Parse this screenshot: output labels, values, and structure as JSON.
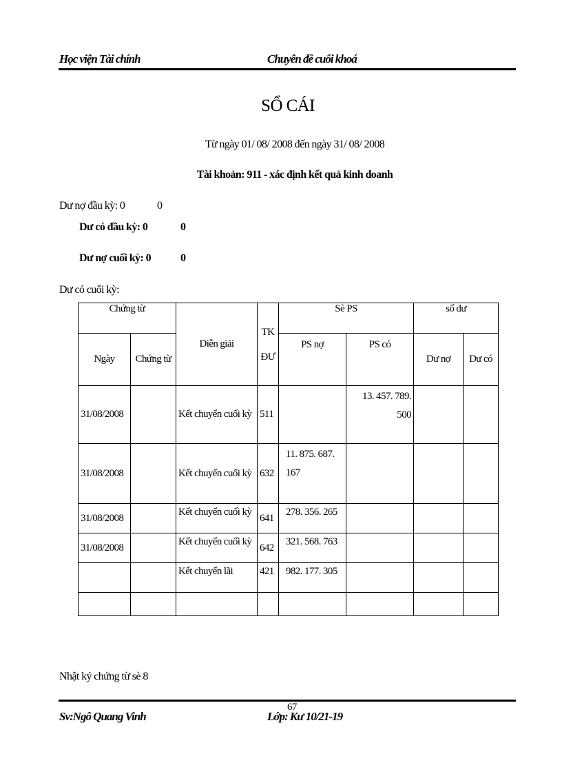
{
  "header": {
    "left": "Học viện Tài chính",
    "center": "Chuyên đề cuối khoá"
  },
  "title": "SỔ CÁI",
  "date_range": "Từ ngày 01/ 08/ 2008 đến ngày 31/ 08/ 2008",
  "account": "Tài khoản: 911 - xác định kết quả kinh doanh",
  "balances": [
    {
      "label": "Dư nợ đầu kỳ: 0",
      "value": "0"
    },
    {
      "label": "Dư có đầu kỳ: 0",
      "value": "0"
    },
    {
      "label": "Dư nợ cuối kỳ: 0",
      "value": "0"
    },
    {
      "label": "Dư có cuối kỳ:",
      "value": ""
    }
  ],
  "table": {
    "headers": {
      "chung_tu": "Chứng từ",
      "ngay": "Ngày",
      "chung_tu_sub": "Chứng từ",
      "dien_giai": "Diễn giải",
      "tk": "TK",
      "du": "ĐƯ",
      "so_ps": "Sè PS",
      "ps_no": "PS nợ",
      "ps_co": "PS có",
      "so_du": "số dư",
      "du_no": "Dư nợ",
      "du_co": "Dư có"
    },
    "rows": [
      {
        "ngay": "31/08/2008",
        "chung_tu": "",
        "dien_giai": "Kết chuyển cuối kỳ",
        "tk": "511",
        "ps_no": "",
        "ps_co": "13. 457. 789. 500",
        "du_no": "",
        "du_co": ""
      },
      {
        "ngay": "31/08/2008",
        "chung_tu": "",
        "dien_giai": "Kết chuyển cuối kỳ",
        "tk": "632",
        "ps_no": "11. 875. 687. 167",
        "ps_co": "",
        "du_no": "",
        "du_co": ""
      },
      {
        "ngay": "31/08/2008",
        "chung_tu": "",
        "dien_giai": "Kết chuyển cuối kỳ",
        "tk": "641",
        "ps_no": "278. 356. 265",
        "ps_co": "",
        "du_no": "",
        "du_co": ""
      },
      {
        "ngay": "31/08/2008",
        "chung_tu": "",
        "dien_giai": "Kết chuyển cuối kỳ",
        "tk": "642",
        "ps_no": "321. 568. 763",
        "ps_co": "",
        "du_no": "",
        "du_co": ""
      },
      {
        "ngay": "",
        "chung_tu": "",
        "dien_giai": "Kết chuyển lãi",
        "tk": "421",
        "ps_no": "982. 177. 305",
        "ps_co": "",
        "du_no": "",
        "du_co": ""
      },
      {
        "ngay": "",
        "chung_tu": "",
        "dien_giai": "",
        "tk": "",
        "ps_no": "",
        "ps_co": "",
        "du_no": "",
        "du_co": ""
      }
    ]
  },
  "note": "Nhật ký chứng từ sè 8",
  "footer": {
    "left": "Sv:Ngô Quang Vinh",
    "center": "Lớp: Kư 10/21-19",
    "page_number": "67"
  }
}
